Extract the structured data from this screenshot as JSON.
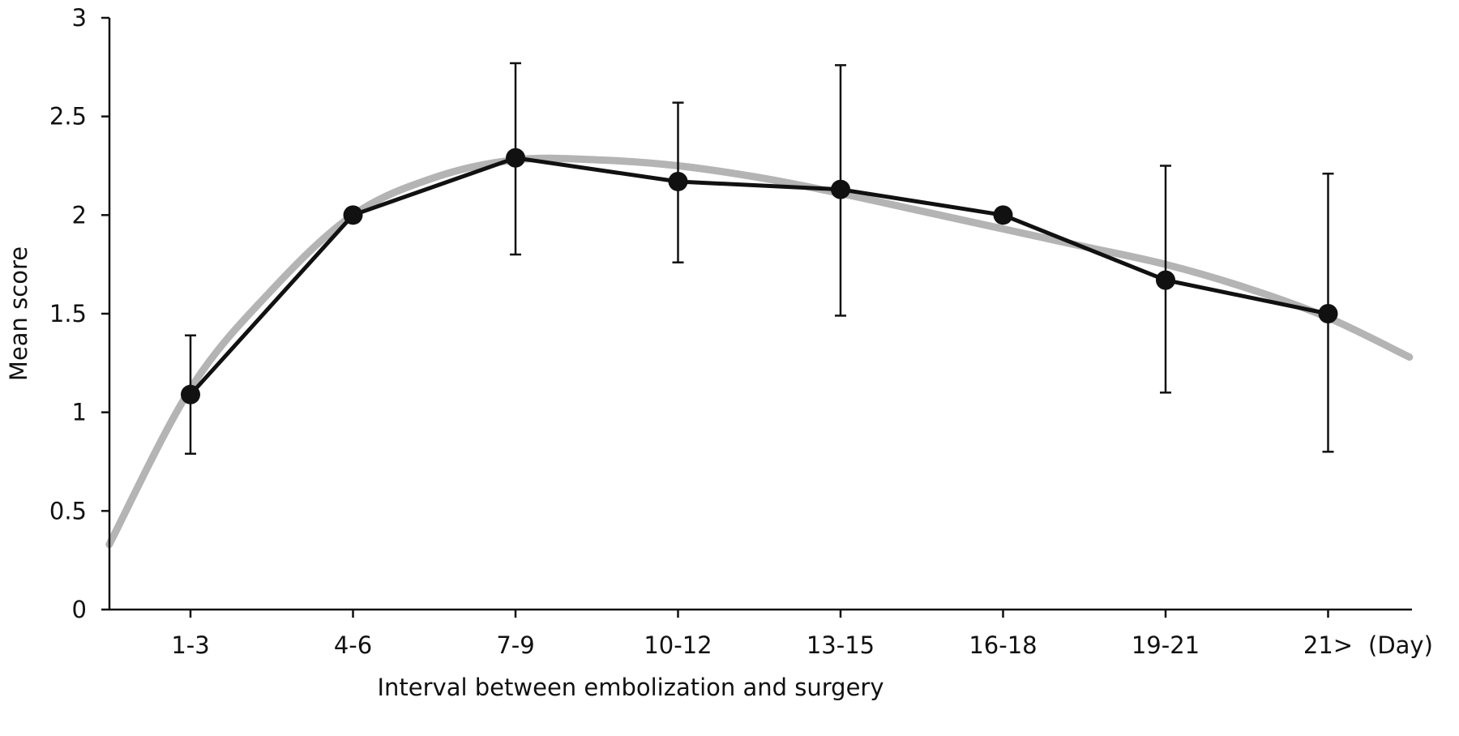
{
  "chart_data": {
    "type": "line",
    "title": "",
    "xlabel": "Interval between embolization and surgery",
    "x_unit_label": "(Day)",
    "ylabel": "Mean score",
    "categories": [
      "1-3",
      "4-6",
      "7-9",
      "10-12",
      "13-15",
      "16-18",
      "19-21",
      "21>"
    ],
    "ylim": [
      0,
      3
    ],
    "yticks": [
      "0",
      "0.5",
      "1",
      "1.5",
      "2",
      "2.5",
      "3"
    ],
    "yticks_values": [
      0,
      0.5,
      1,
      1.5,
      2,
      2.5,
      3
    ],
    "grid": false,
    "series": [
      {
        "values": [
          1.09,
          2.0,
          2.29,
          2.17,
          2.13,
          2.0,
          1.67,
          1.5
        ],
        "error_upper": [
          1.39,
          null,
          2.77,
          2.57,
          2.76,
          null,
          2.25,
          2.21
        ],
        "error_lower": [
          0.79,
          null,
          1.8,
          1.76,
          1.49,
          null,
          1.1,
          0.8
        ],
        "color": "#111111"
      }
    ],
    "fit_curve": {
      "description_shown": false,
      "x_index": [
        -0.5,
        0.0,
        0.5,
        1.0,
        1.5,
        2.0,
        2.5,
        3.0,
        3.5,
        4.0,
        4.5,
        5.0,
        5.5,
        6.0,
        6.5,
        7.0,
        7.5
      ],
      "values": [
        0.33,
        1.12,
        1.62,
        2.0,
        2.19,
        2.28,
        2.28,
        2.25,
        2.19,
        2.11,
        2.02,
        1.93,
        1.84,
        1.75,
        1.63,
        1.48,
        1.28
      ],
      "color": "#b4b4b4"
    }
  }
}
